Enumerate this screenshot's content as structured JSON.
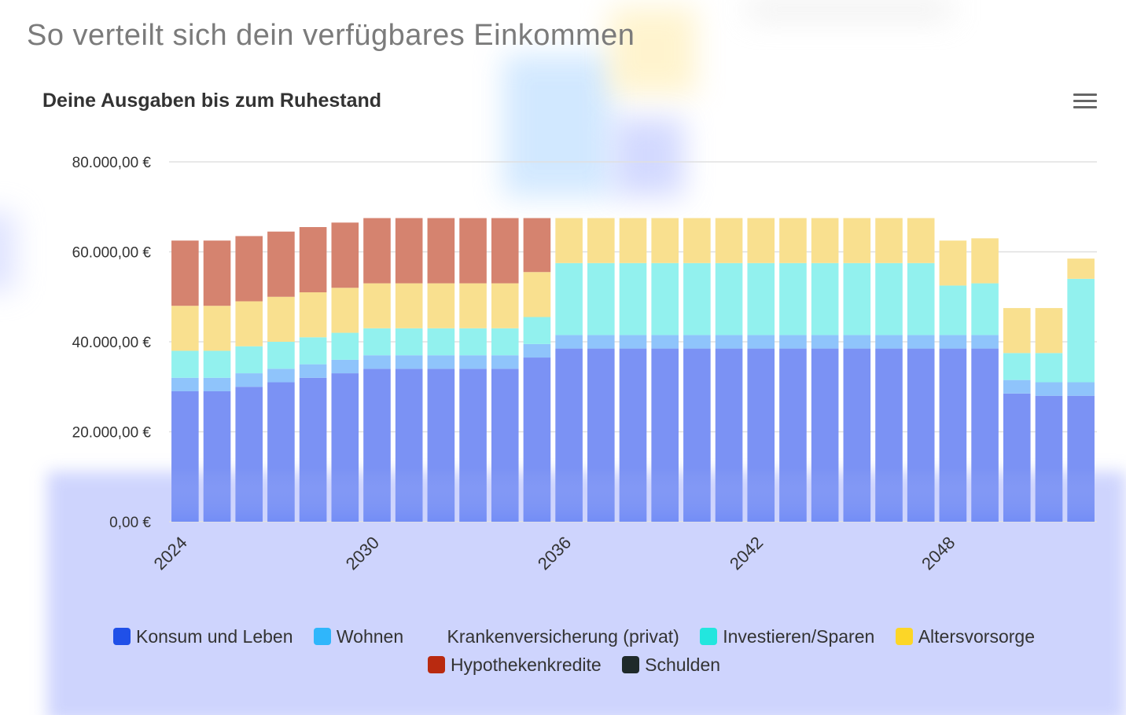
{
  "page": {
    "title": "So verteilt sich dein verfügbares Einkommen"
  },
  "menu": {
    "icon": "hamburger-icon"
  },
  "chart_data": {
    "type": "bar",
    "stacked": true,
    "title": "Deine Ausgaben bis zum Ruhestand",
    "xlabel": "",
    "ylabel": "",
    "ylim": [
      0,
      80000
    ],
    "y_ticks": [
      "0,00 €",
      "20.000,00 €",
      "40.000,00 €",
      "60.000,00 €",
      "80.000,00 €"
    ],
    "y_tick_values": [
      0,
      20000,
      40000,
      60000,
      80000
    ],
    "x_tick_labels": [
      "2024",
      "2030",
      "2036",
      "2042",
      "2048"
    ],
    "x_tick_values": [
      2024,
      2030,
      2036,
      2042,
      2048
    ],
    "categories": [
      2024,
      2025,
      2026,
      2027,
      2028,
      2029,
      2030,
      2031,
      2032,
      2033,
      2034,
      2035,
      2036,
      2037,
      2038,
      2039,
      2040,
      2041,
      2042,
      2043,
      2044,
      2045,
      2046,
      2047,
      2048,
      2049,
      2050,
      2051,
      2052
    ],
    "grid": true,
    "legend_position": "bottom",
    "series": [
      {
        "name": "Konsum und Leben",
        "legend_color": "#2050e8",
        "bar_color": "#7b92f4",
        "values": [
          29000,
          29000,
          30000,
          31000,
          32000,
          33000,
          34000,
          34000,
          34000,
          34000,
          34000,
          36500,
          38500,
          38500,
          38500,
          38500,
          38500,
          38500,
          38500,
          38500,
          38500,
          38500,
          38500,
          38500,
          38500,
          38500,
          28500,
          28000,
          28000
        ]
      },
      {
        "name": "Wohnen",
        "legend_color": "#2fb6fb",
        "bar_color": "#8fc4fb",
        "values": [
          3000,
          3000,
          3000,
          3000,
          3000,
          3000,
          3000,
          3000,
          3000,
          3000,
          3000,
          3000,
          3000,
          3000,
          3000,
          3000,
          3000,
          3000,
          3000,
          3000,
          3000,
          3000,
          3000,
          3000,
          3000,
          3000,
          3000,
          3000,
          3000
        ]
      },
      {
        "name": "Krankenversicherung (privat)",
        "legend_color": "",
        "bar_color": "",
        "values": [
          0,
          0,
          0,
          0,
          0,
          0,
          0,
          0,
          0,
          0,
          0,
          0,
          0,
          0,
          0,
          0,
          0,
          0,
          0,
          0,
          0,
          0,
          0,
          0,
          0,
          0,
          0,
          0,
          0
        ]
      },
      {
        "name": "Investieren/Sparen",
        "legend_color": "#22e6de",
        "bar_color": "#92f1ee",
        "values": [
          6000,
          6000,
          6000,
          6000,
          6000,
          6000,
          6000,
          6000,
          6000,
          6000,
          6000,
          6000,
          16000,
          16000,
          16000,
          16000,
          16000,
          16000,
          16000,
          16000,
          16000,
          16000,
          16000,
          16000,
          11000,
          11500,
          6000,
          6500,
          23000
        ]
      },
      {
        "name": "Altersvorsorge",
        "legend_color": "#fcd627",
        "bar_color": "#f9e08f",
        "values": [
          10000,
          10000,
          10000,
          10000,
          10000,
          10000,
          10000,
          10000,
          10000,
          10000,
          10000,
          10000,
          10000,
          10000,
          10000,
          10000,
          10000,
          10000,
          10000,
          10000,
          10000,
          10000,
          10000,
          10000,
          10000,
          10000,
          10000,
          10000,
          4500
        ]
      },
      {
        "name": "Hypothekenkredite",
        "legend_color": "#b92a10",
        "bar_color": "#d5836f",
        "values": [
          14500,
          14500,
          14500,
          14500,
          14500,
          14500,
          14500,
          14500,
          14500,
          14500,
          14500,
          12000,
          0,
          0,
          0,
          0,
          0,
          0,
          0,
          0,
          0,
          0,
          0,
          0,
          0,
          0,
          0,
          0,
          0
        ]
      },
      {
        "name": "Schulden",
        "legend_color": "#1f2a2a",
        "bar_color": "#1f2a2a",
        "values": [
          0,
          0,
          0,
          0,
          0,
          0,
          0,
          0,
          0,
          0,
          0,
          0,
          0,
          0,
          0,
          0,
          0,
          0,
          0,
          0,
          0,
          0,
          0,
          0,
          0,
          0,
          0,
          0,
          0
        ]
      }
    ]
  }
}
